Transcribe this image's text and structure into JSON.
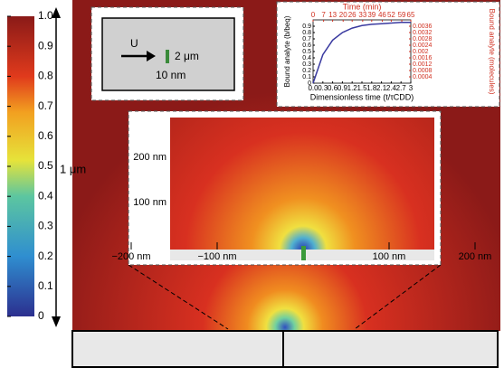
{
  "colorbar": {
    "ticks": [
      0,
      0.1,
      0.2,
      0.3,
      0.4,
      0.5,
      0.6,
      0.7,
      0.8,
      0.9,
      {
        "value": 1,
        "label": "1.0"
      }
    ],
    "lim": [
      0,
      1
    ],
    "scale_label": "1 μm"
  },
  "schematic": {
    "flow_label": "U",
    "length_label": "2 μm",
    "width_label": "10 nm"
  },
  "zoom": {
    "y_labels": [
      "200 nm",
      "100 nm"
    ],
    "x_labels": [
      "−200 nm",
      "−100 nm",
      "100 nm",
      "200 nm"
    ]
  },
  "chart_data": {
    "type": "line",
    "x_label": "Dimensionless time (t/τCDD)",
    "y_label": "Bound analyte (b/beq)",
    "x2_label": "Time (min)",
    "y2_label": "Bound analyte (molecules)",
    "x": [
      0,
      0.3,
      0.6,
      0.9,
      1.2,
      1.5,
      1.8,
      2.1,
      2.4,
      2.7,
      3
    ],
    "series": [
      {
        "color": "#3a3aa0",
        "values": [
          0,
          0.45,
          0.68,
          0.8,
          0.87,
          0.91,
          0.93,
          0.94,
          0.95,
          0.96,
          0.96
        ]
      }
    ],
    "xlim": [
      0,
      3
    ],
    "ylim": [
      0,
      1
    ],
    "xticks": [
      {
        "value": 0,
        "label": "0.0"
      },
      0.3,
      0.6,
      0.9,
      1.2,
      1.5,
      1.8,
      2.1,
      2.4,
      2.7,
      3
    ],
    "yticks": [
      0,
      0.1,
      0.2,
      0.3,
      0.4,
      0.5,
      0.6,
      0.7,
      0.8,
      0.9
    ],
    "x2lim": [
      0,
      65
    ],
    "x2ticks": [
      0,
      7,
      13,
      20,
      26,
      33,
      39,
      46,
      52,
      59,
      65
    ],
    "y2lim": [
      0,
      0.004
    ],
    "y2ticks": [
      0.0004,
      0.0008,
      0.0012,
      0.0016,
      0.002,
      0.0024,
      0.0028,
      0.0032,
      0.0036
    ],
    "axis2_color": "#d03020"
  }
}
